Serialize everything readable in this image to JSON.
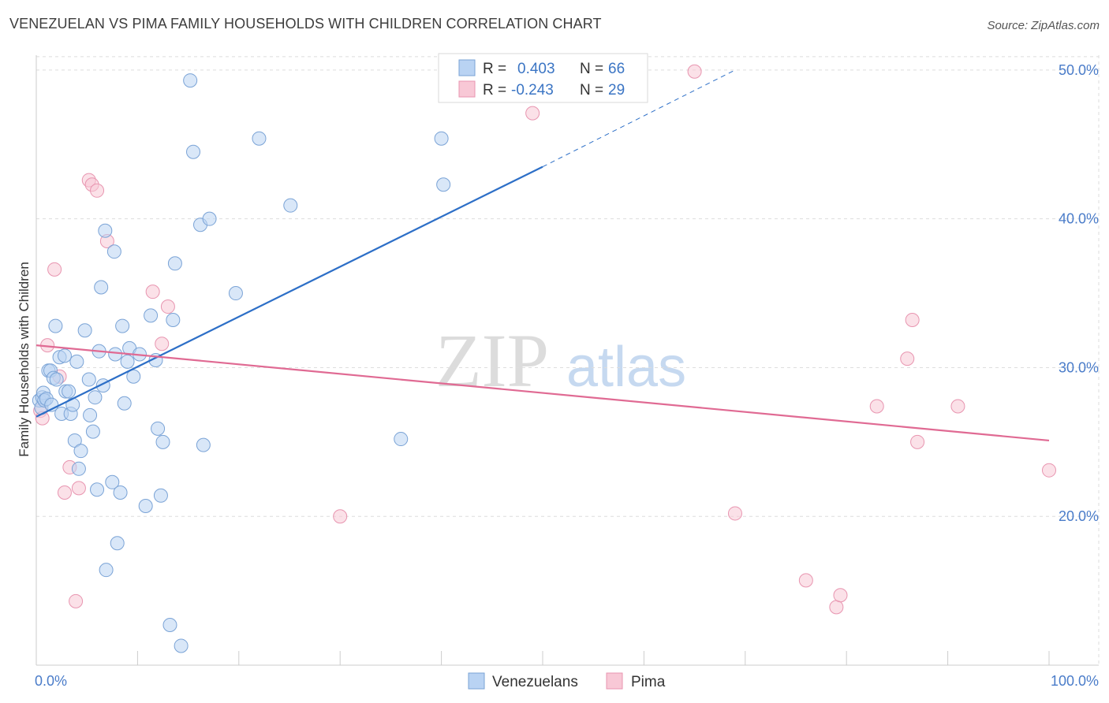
{
  "title": "VENEZUELAN VS PIMA FAMILY HOUSEHOLDS WITH CHILDREN CORRELATION CHART",
  "source": "Source: ZipAtlas.com",
  "watermark": {
    "zip": "ZIP",
    "atlas": "atlas"
  },
  "legend_box": {
    "rows": [
      {
        "r_label": "R =",
        "r_value": "0.403",
        "n_label": "N =",
        "n_value": "66"
      },
      {
        "r_label": "R =",
        "r_value": "-0.243",
        "n_label": "N =",
        "n_value": "29"
      }
    ]
  },
  "bottom_legend": {
    "venezuelans": "Venezuelans",
    "pima": "Pima"
  },
  "colors": {
    "venezuelans_fill": "#b9d3f3",
    "venezuelans_stroke": "#7aa3d6",
    "venezuelans_line": "#2d6fc7",
    "pima_fill": "#f8c8d6",
    "pima_stroke": "#e895b0",
    "pima_line": "#e06a93",
    "grid": "#dddddd",
    "tick_label": "#4a7cc9"
  },
  "chart_data": {
    "type": "scatter",
    "title": "VENEZUELAN VS PIMA FAMILY HOUSEHOLDS WITH CHILDREN CORRELATION CHART",
    "xlabel": "",
    "ylabel": "Family Households with Children",
    "xlim": [
      0,
      100
    ],
    "ylim": [
      10,
      51
    ],
    "x_tick_labels": [
      "0.0%",
      "100.0%"
    ],
    "y_ticks": [
      20,
      30,
      40,
      50
    ],
    "y_tick_labels": [
      "20.0%",
      "30.0%",
      "40.0%",
      "50.0%"
    ],
    "grid": true,
    "legend_position": "top-center",
    "series": [
      {
        "name": "Venezuelans",
        "r": 0.403,
        "n": 66,
        "trend": {
          "x0": 0,
          "y0": 26.7,
          "x1": 50,
          "y1": 43.5,
          "dashed_to_x": 69,
          "dashed_to_y": 50.0
        },
        "points": [
          [
            0.3,
            27.8
          ],
          [
            0.5,
            27.3
          ],
          [
            0.6,
            28.0
          ],
          [
            0.7,
            28.3
          ],
          [
            0.8,
            27.8
          ],
          [
            1.0,
            27.9
          ],
          [
            1.2,
            29.8
          ],
          [
            1.4,
            29.8
          ],
          [
            1.5,
            27.5
          ],
          [
            1.7,
            29.3
          ],
          [
            1.9,
            32.8
          ],
          [
            2.0,
            29.2
          ],
          [
            2.3,
            30.7
          ],
          [
            2.5,
            26.9
          ],
          [
            2.8,
            30.8
          ],
          [
            2.9,
            28.4
          ],
          [
            3.2,
            28.4
          ],
          [
            3.4,
            26.9
          ],
          [
            3.6,
            27.5
          ],
          [
            3.8,
            25.1
          ],
          [
            4.0,
            30.4
          ],
          [
            4.2,
            23.2
          ],
          [
            4.4,
            24.4
          ],
          [
            4.8,
            32.5
          ],
          [
            5.2,
            29.2
          ],
          [
            5.3,
            26.8
          ],
          [
            5.6,
            25.7
          ],
          [
            5.8,
            28.0
          ],
          [
            6.0,
            21.8
          ],
          [
            6.2,
            31.1
          ],
          [
            6.4,
            35.4
          ],
          [
            6.6,
            28.8
          ],
          [
            6.8,
            39.2
          ],
          [
            6.9,
            16.4
          ],
          [
            7.5,
            22.3
          ],
          [
            7.7,
            37.8
          ],
          [
            7.8,
            30.9
          ],
          [
            8.0,
            18.2
          ],
          [
            8.3,
            21.6
          ],
          [
            8.5,
            32.8
          ],
          [
            8.7,
            27.6
          ],
          [
            9.0,
            30.4
          ],
          [
            9.2,
            31.3
          ],
          [
            9.6,
            29.4
          ],
          [
            10.2,
            30.9
          ],
          [
            10.8,
            20.7
          ],
          [
            11.3,
            33.5
          ],
          [
            11.8,
            30.5
          ],
          [
            12.0,
            25.9
          ],
          [
            12.3,
            21.4
          ],
          [
            12.5,
            25.0
          ],
          [
            13.2,
            12.7
          ],
          [
            13.5,
            33.2
          ],
          [
            13.7,
            37.0
          ],
          [
            14.3,
            11.3
          ],
          [
            15.2,
            49.3
          ],
          [
            15.5,
            44.5
          ],
          [
            16.2,
            39.6
          ],
          [
            16.5,
            24.8
          ],
          [
            17.1,
            40.0
          ],
          [
            19.7,
            35.0
          ],
          [
            22.0,
            45.4
          ],
          [
            25.1,
            40.9
          ],
          [
            36.0,
            25.2
          ],
          [
            40.0,
            45.4
          ],
          [
            40.2,
            42.3
          ]
        ]
      },
      {
        "name": "Pima",
        "r": -0.243,
        "n": 29,
        "trend": {
          "x0": 0,
          "y0": 31.5,
          "x1": 100,
          "y1": 25.1
        },
        "points": [
          [
            0.4,
            27.1
          ],
          [
            0.6,
            26.6
          ],
          [
            1.1,
            31.5
          ],
          [
            1.8,
            36.6
          ],
          [
            2.3,
            29.4
          ],
          [
            2.8,
            21.6
          ],
          [
            3.3,
            23.3
          ],
          [
            3.9,
            14.3
          ],
          [
            4.2,
            21.9
          ],
          [
            5.2,
            42.6
          ],
          [
            5.5,
            42.3
          ],
          [
            6.0,
            41.9
          ],
          [
            7.0,
            38.5
          ],
          [
            11.5,
            35.1
          ],
          [
            12.4,
            31.6
          ],
          [
            13.0,
            34.1
          ],
          [
            30.0,
            20.0
          ],
          [
            49.0,
            47.1
          ],
          [
            65.0,
            49.9
          ],
          [
            69.0,
            20.2
          ],
          [
            76.0,
            15.7
          ],
          [
            79.0,
            13.9
          ],
          [
            79.4,
            14.7
          ],
          [
            83.0,
            27.4
          ],
          [
            86.0,
            30.6
          ],
          [
            86.5,
            33.2
          ],
          [
            87.0,
            25.0
          ],
          [
            91.0,
            27.4
          ],
          [
            100.0,
            23.1
          ]
        ]
      }
    ]
  }
}
